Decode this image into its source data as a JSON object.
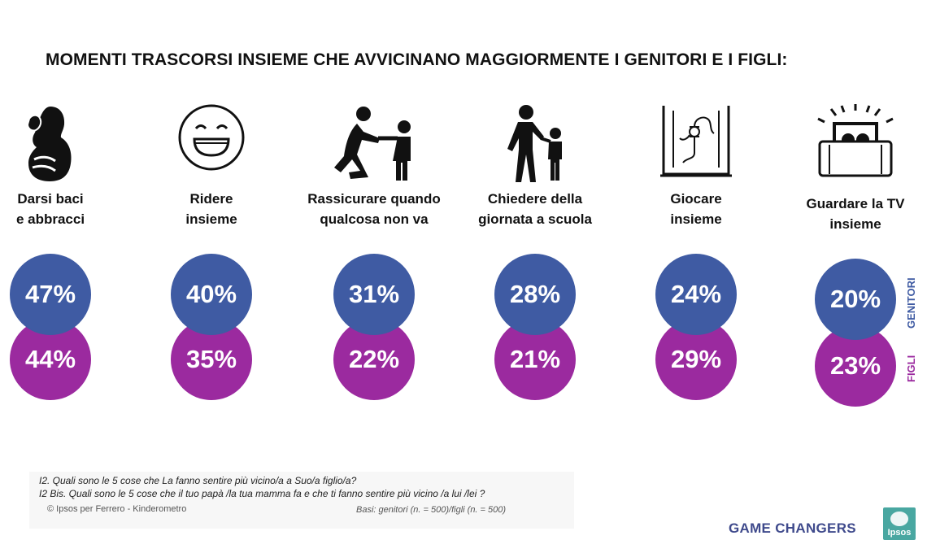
{
  "title": "MOMENTI TRASCORSI INSIEME CHE AVVICINANO MAGGIORMENTE I GENITORI E I FIGLI:",
  "chart_data": {
    "type": "bubble-comparison",
    "categories": [
      [
        "Darsi baci",
        "e abbracci"
      ],
      [
        "Ridere",
        "insieme"
      ],
      [
        "Rassicurare quando",
        "qualcosa non va"
      ],
      [
        "Chiedere della",
        "giornata a scuola"
      ],
      [
        "Giocare",
        "insieme"
      ],
      [
        "Guardare la TV",
        "insieme"
      ]
    ],
    "series": [
      {
        "name": "GENITORI",
        "color": "#3f5ba3",
        "values": [
          47,
          40,
          31,
          28,
          24,
          20
        ]
      },
      {
        "name": "FIGLI",
        "color": "#9b2a9f",
        "values": [
          44,
          35,
          22,
          21,
          29,
          23
        ]
      }
    ],
    "unit": "%",
    "legend": "right, vertical"
  },
  "icons": [
    "hug-icon",
    "laughing-face-icon",
    "comforting-child-icon",
    "parent-child-talking-icon",
    "game-icon",
    "tv-icon"
  ],
  "footer": {
    "question1": "I2. Quali sono le 5 cose che La fanno sentire più vicino/a a Suo/a figlio/a?",
    "question2": "I2 Bis. Quali sono le 5 cose che il tuo papà /la tua mamma  fa e che  ti fanno sentire più vicino /a lui /lei ?",
    "copyright": "© Ipsos per Ferrero - Kinderometro",
    "basi": "Basi: genitori (n. = 500)/figli (n. = 500)"
  },
  "branding": {
    "tagline": "GAME CHANGERS",
    "logo": "Ipsos"
  }
}
